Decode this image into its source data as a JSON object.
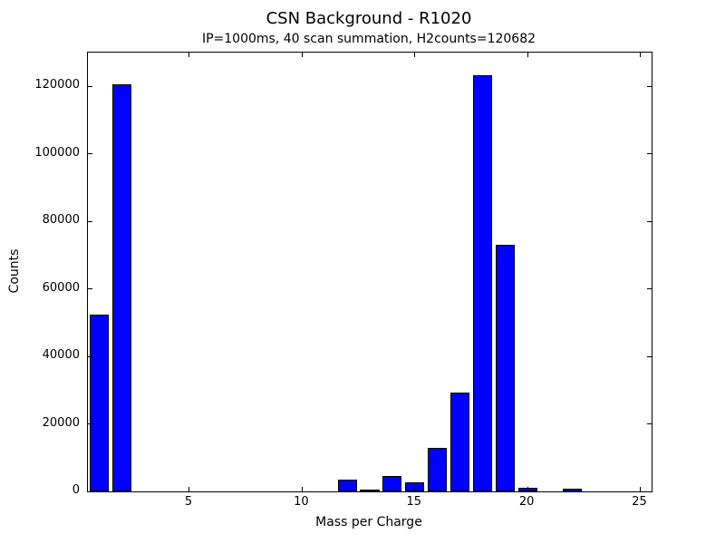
{
  "figure": {
    "title": "CSN Background - R1020",
    "subtitle": "IP=1000ms, 40 scan summation, H2counts=120682"
  },
  "chart_data": {
    "type": "bar",
    "title": "CSN Background - R1020",
    "subtitle": "IP=1000ms, 40 scan summation, H2counts=120682",
    "xlabel": "Mass per Charge",
    "ylabel": "Counts",
    "x": [
      1,
      2,
      3,
      4,
      5,
      6,
      7,
      8,
      9,
      10,
      11,
      12,
      13,
      14,
      15,
      16,
      17,
      18,
      19,
      20,
      21,
      22,
      23,
      24,
      25
    ],
    "values": [
      52500,
      120682,
      100,
      100,
      100,
      100,
      100,
      100,
      100,
      100,
      150,
      3600,
      600,
      4700,
      2800,
      12900,
      29300,
      123400,
      73000,
      1000,
      100,
      800,
      0,
      0,
      0
    ],
    "xticks": [
      5,
      10,
      15,
      20,
      25
    ],
    "yticks": [
      0,
      20000,
      40000,
      60000,
      80000,
      100000,
      120000
    ],
    "xlim": [
      0.5,
      25.5
    ],
    "ylim": [
      0,
      130000
    ],
    "bar_width": 0.85,
    "bar_color": "#0000ff",
    "bar_edge_color": "#000000",
    "grid": false,
    "legend_position": "none",
    "tick_direction": "in"
  }
}
